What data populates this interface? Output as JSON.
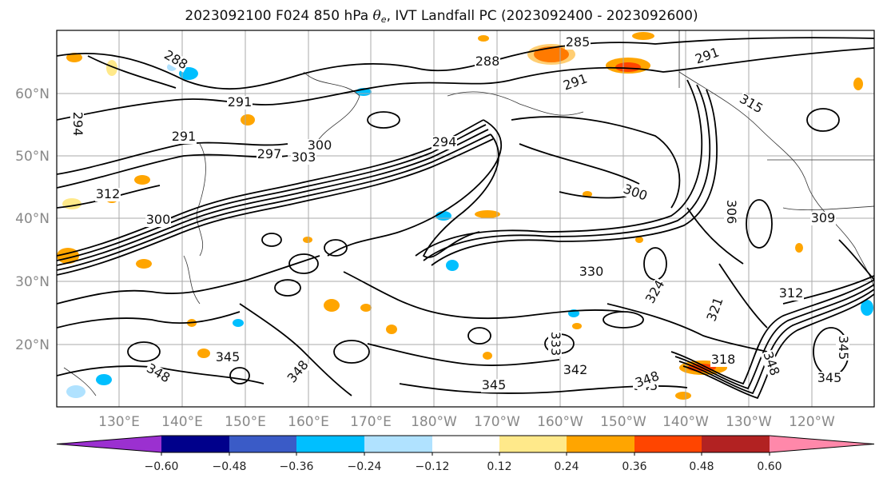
{
  "title": {
    "prefix": "2023092100 F024 850 hPa ",
    "theta": "θ",
    "theta_sub": "e",
    "suffix": ", IVT Landfall PC (2023092400 - 2023092600)"
  },
  "lat_labels": [
    "60°N",
    "50°N",
    "40°N",
    "30°N",
    "20°N"
  ],
  "lon_labels": [
    "130°E",
    "140°E",
    "150°E",
    "160°E",
    "170°E",
    "180°W",
    "170°W",
    "160°W",
    "150°W",
    "140°W",
    "130°W",
    "120°W"
  ],
  "colorbar": {
    "colors": [
      "#9b30d0",
      "#00008b",
      "#3a5bc7",
      "#00bfff",
      "#b0e2ff",
      "#ffffff",
      "#ffe98a",
      "#ffa500",
      "#ff4500",
      "#b22222",
      "#ff88aa"
    ],
    "tick_labels": [
      "−0.60",
      "−0.48",
      "−0.36",
      "−0.24",
      "−0.12",
      "0.12",
      "0.24",
      "0.36",
      "0.48",
      "0.60"
    ]
  },
  "contour_labels": [
    "285",
    "288",
    "288",
    "291",
    "291",
    "291",
    "291",
    "294",
    "297",
    "300",
    "303",
    "312",
    "300",
    "300",
    "306",
    "309",
    "315",
    "318",
    "321",
    "324",
    "330",
    "333",
    "342",
    "345",
    "345",
    "345",
    "348",
    "348",
    "348",
    "345",
    "345",
    "348",
    "312",
    "294"
  ]
}
